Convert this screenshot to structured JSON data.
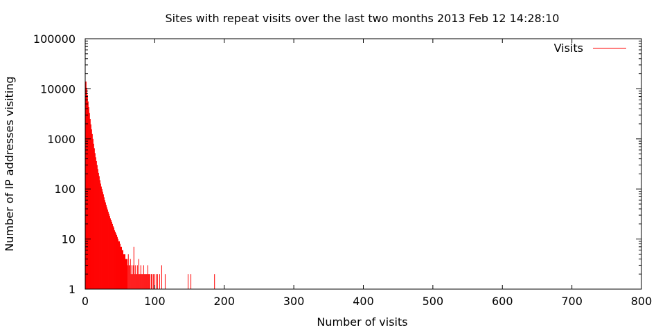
{
  "chart_data": {
    "type": "bar",
    "title": "Sites with repeat visits over the last two months  2013 Feb 12  14:28:10",
    "xlabel": "Number of visits",
    "ylabel": "Number of IP addresses visiting",
    "xlim": [
      0,
      800
    ],
    "ylim": [
      1,
      100000
    ],
    "yscale": "log",
    "xticks": [
      0,
      100,
      200,
      300,
      400,
      500,
      600,
      700,
      800
    ],
    "yticks": [
      1,
      10,
      100,
      1000,
      10000,
      100000
    ],
    "ytick_labels": [
      "1",
      "10",
      "100",
      "1000",
      "10000",
      "100000"
    ],
    "grid": false,
    "legend_position": "top-right",
    "series": [
      {
        "name": "Visits",
        "color": "#ff0000",
        "points": [
          [
            1,
            14000
          ],
          [
            2,
            10500
          ],
          [
            3,
            7600
          ],
          [
            4,
            5600
          ],
          [
            5,
            4300
          ],
          [
            6,
            3300
          ],
          [
            7,
            2500
          ],
          [
            8,
            1950
          ],
          [
            9,
            1550
          ],
          [
            10,
            1250
          ],
          [
            11,
            1000
          ],
          [
            12,
            800
          ],
          [
            13,
            650
          ],
          [
            14,
            520
          ],
          [
            15,
            430
          ],
          [
            16,
            360
          ],
          [
            17,
            300
          ],
          [
            18,
            250
          ],
          [
            19,
            210
          ],
          [
            20,
            180
          ],
          [
            21,
            150
          ],
          [
            22,
            128
          ],
          [
            23,
            112
          ],
          [
            24,
            100
          ],
          [
            25,
            88
          ],
          [
            26,
            78
          ],
          [
            27,
            68
          ],
          [
            28,
            60
          ],
          [
            29,
            54
          ],
          [
            30,
            48
          ],
          [
            31,
            43
          ],
          [
            32,
            39
          ],
          [
            33,
            35
          ],
          [
            34,
            32
          ],
          [
            35,
            29
          ],
          [
            36,
            26
          ],
          [
            37,
            24
          ],
          [
            38,
            22
          ],
          [
            39,
            20
          ],
          [
            40,
            18
          ],
          [
            41,
            17
          ],
          [
            42,
            15
          ],
          [
            43,
            14
          ],
          [
            44,
            13
          ],
          [
            45,
            12
          ],
          [
            46,
            11
          ],
          [
            47,
            10
          ],
          [
            48,
            9
          ],
          [
            49,
            9
          ],
          [
            50,
            8
          ],
          [
            51,
            7
          ],
          [
            52,
            7
          ],
          [
            53,
            6
          ],
          [
            54,
            6
          ],
          [
            55,
            5
          ],
          [
            56,
            5
          ],
          [
            57,
            5
          ],
          [
            58,
            4
          ],
          [
            59,
            4
          ],
          [
            60,
            4
          ],
          [
            61,
            3
          ],
          [
            62,
            5
          ],
          [
            63,
            3
          ],
          [
            64,
            3
          ],
          [
            65,
            4
          ],
          [
            66,
            2
          ],
          [
            67,
            3
          ],
          [
            68,
            2
          ],
          [
            69,
            3
          ],
          [
            70,
            7
          ],
          [
            71,
            2
          ],
          [
            72,
            3
          ],
          [
            73,
            2
          ],
          [
            74,
            2
          ],
          [
            75,
            3
          ],
          [
            76,
            2
          ],
          [
            77,
            4
          ],
          [
            78,
            2
          ],
          [
            79,
            2
          ],
          [
            80,
            3
          ],
          [
            81,
            2
          ],
          [
            82,
            2
          ],
          [
            83,
            2
          ],
          [
            84,
            3
          ],
          [
            85,
            2
          ],
          [
            86,
            2
          ],
          [
            87,
            2
          ],
          [
            88,
            2
          ],
          [
            89,
            2
          ],
          [
            90,
            3
          ],
          [
            91,
            2
          ],
          [
            92,
            2
          ],
          [
            93,
            2
          ],
          [
            95,
            2
          ],
          [
            96,
            2
          ],
          [
            98,
            2
          ],
          [
            100,
            2
          ],
          [
            102,
            2
          ],
          [
            104,
            2
          ],
          [
            107,
            2
          ],
          [
            110,
            3
          ],
          [
            115,
            2
          ],
          [
            148,
            2
          ],
          [
            152,
            2
          ],
          [
            186,
            2
          ]
        ]
      }
    ]
  }
}
